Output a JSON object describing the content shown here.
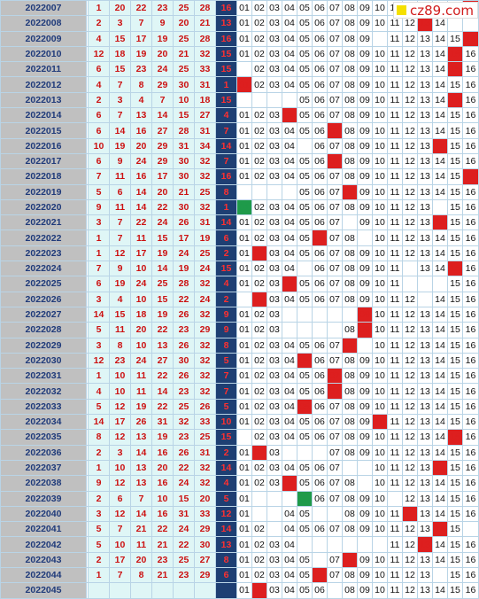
{
  "logo": {
    "text": "cz89.com"
  },
  "rows": [
    {
      "p": "2022007",
      "r": [
        1,
        20,
        22,
        23,
        25,
        28
      ],
      "b": 16,
      "hit": "16"
    },
    {
      "p": "2022008",
      "r": [
        2,
        3,
        7,
        9,
        20,
        21
      ],
      "b": 13,
      "hit": "13"
    },
    {
      "p": "2022009",
      "r": [
        4,
        15,
        17,
        19,
        25,
        28
      ],
      "b": 16,
      "hit": "16"
    },
    {
      "p": "2022010",
      "r": [
        12,
        18,
        19,
        20,
        21,
        32
      ],
      "b": 15,
      "hit": "15"
    },
    {
      "p": "2022011",
      "r": [
        6,
        15,
        23,
        24,
        25,
        33
      ],
      "b": 15,
      "hit": "15"
    },
    {
      "p": "2022012",
      "r": [
        4,
        7,
        8,
        29,
        30,
        31
      ],
      "b": 1,
      "hit": "01"
    },
    {
      "p": "2022013",
      "r": [
        2,
        3,
        4,
        7,
        10,
        18
      ],
      "b": 15,
      "hit": "15"
    },
    {
      "p": "2022014",
      "r": [
        6,
        7,
        13,
        14,
        15,
        27
      ],
      "b": 4,
      "hit": "04"
    },
    {
      "p": "2022015",
      "r": [
        6,
        14,
        16,
        27,
        28,
        31
      ],
      "b": 7,
      "hit": "07"
    },
    {
      "p": "2022016",
      "r": [
        10,
        19,
        20,
        29,
        31,
        34
      ],
      "b": 14,
      "hit": "14"
    },
    {
      "p": "2022017",
      "r": [
        6,
        9,
        24,
        29,
        30,
        32
      ],
      "b": 7,
      "hit": "07"
    },
    {
      "p": "2022018",
      "r": [
        7,
        11,
        16,
        17,
        30,
        32
      ],
      "b": 16,
      "hit": "16"
    },
    {
      "p": "2022019",
      "r": [
        5,
        6,
        14,
        20,
        21,
        25
      ],
      "b": 8,
      "hit": "08"
    },
    {
      "p": "2022020",
      "r": [
        9,
        11,
        14,
        22,
        30,
        32
      ],
      "b": 1,
      "hit": "01",
      "green": true
    },
    {
      "p": "2022021",
      "r": [
        3,
        7,
        22,
        24,
        26,
        31
      ],
      "b": 14,
      "hit": "14"
    },
    {
      "p": "2022022",
      "r": [
        1,
        7,
        11,
        15,
        17,
        19
      ],
      "b": 6,
      "hit": "06"
    },
    {
      "p": "2022023",
      "r": [
        1,
        12,
        17,
        19,
        24,
        25
      ],
      "b": 2,
      "hit": "02"
    },
    {
      "p": "2022024",
      "r": [
        7,
        9,
        10,
        14,
        19,
        24
      ],
      "b": 15,
      "hit": "15"
    },
    {
      "p": "2022025",
      "r": [
        6,
        19,
        24,
        25,
        28,
        32
      ],
      "b": 4,
      "hit": "04"
    },
    {
      "p": "2022026",
      "r": [
        3,
        4,
        10,
        15,
        22,
        24
      ],
      "b": 2,
      "hit": "02"
    },
    {
      "p": "2022027",
      "r": [
        14,
        15,
        18,
        19,
        26,
        32
      ],
      "b": 9,
      "hit": "09"
    },
    {
      "p": "2022028",
      "r": [
        5,
        11,
        20,
        22,
        23,
        29
      ],
      "b": 9,
      "hit": "09"
    },
    {
      "p": "2022029",
      "r": [
        3,
        8,
        10,
        13,
        26,
        32
      ],
      "b": 8,
      "hit": "08"
    },
    {
      "p": "2022030",
      "r": [
        12,
        23,
        24,
        27,
        30,
        32
      ],
      "b": 5,
      "hit": "05"
    },
    {
      "p": "2022031",
      "r": [
        1,
        10,
        11,
        22,
        26,
        32
      ],
      "b": 7,
      "hit": "07"
    },
    {
      "p": "2022032",
      "r": [
        4,
        10,
        11,
        14,
        23,
        32
      ],
      "b": 7,
      "hit": "07"
    },
    {
      "p": "2022033",
      "r": [
        5,
        12,
        19,
        22,
        25,
        26
      ],
      "b": 5,
      "hit": "05"
    },
    {
      "p": "2022034",
      "r": [
        14,
        17,
        26,
        31,
        32,
        33
      ],
      "b": 10,
      "hit": "10"
    },
    {
      "p": "2022035",
      "r": [
        8,
        12,
        13,
        19,
        23,
        25
      ],
      "b": 15,
      "hit": "15"
    },
    {
      "p": "2022036",
      "r": [
        2,
        3,
        14,
        16,
        26,
        31
      ],
      "b": 2,
      "hit": "02"
    },
    {
      "p": "2022037",
      "r": [
        1,
        10,
        13,
        20,
        22,
        32
      ],
      "b": 14,
      "hit": "14"
    },
    {
      "p": "2022038",
      "r": [
        9,
        12,
        13,
        16,
        24,
        32
      ],
      "b": 4,
      "hit": "04"
    },
    {
      "p": "2022039",
      "r": [
        2,
        6,
        7,
        10,
        15,
        20
      ],
      "b": 5,
      "hit": "05",
      "green": true
    },
    {
      "p": "2022040",
      "r": [
        3,
        12,
        14,
        16,
        31,
        33
      ],
      "b": 12,
      "hit": "12"
    },
    {
      "p": "2022041",
      "r": [
        5,
        7,
        21,
        22,
        24,
        29
      ],
      "b": 14,
      "hit": "14"
    },
    {
      "p": "2022042",
      "r": [
        5,
        10,
        11,
        21,
        22,
        30
      ],
      "b": 13,
      "hit": "13"
    },
    {
      "p": "2022043",
      "r": [
        2,
        17,
        20,
        23,
        25,
        27
      ],
      "b": 8,
      "hit": "08"
    },
    {
      "p": "2022044",
      "r": [
        1,
        7,
        8,
        21,
        23,
        29
      ],
      "b": 6,
      "hit": "06"
    },
    {
      "p": "2022045",
      "r": [],
      "b": null,
      "hit": "02"
    }
  ],
  "blank_cells": {
    "2022007": [
      "12",
      "13",
      "14",
      "15"
    ],
    "2022008": [
      "15",
      "16"
    ],
    "2022009": [
      "10"
    ],
    "2022011": [
      "01"
    ],
    "2022013": [
      "01",
      "02",
      "03",
      "04"
    ],
    "2022016": [
      "05"
    ],
    "2022019": [
      "01",
      "02",
      "03",
      "04"
    ],
    "2022020": [
      "14"
    ],
    "2022021": [
      "08"
    ],
    "2022022": [
      "09"
    ],
    "2022024": [
      "05",
      "12"
    ],
    "2022025": [
      "12",
      "13",
      "14"
    ],
    "2022026": [
      "01",
      "13"
    ],
    "2022027": [
      "04",
      "05",
      "06",
      "07",
      "08"
    ],
    "2022028": [
      "04",
      "05",
      "06",
      "07"
    ],
    "2022029": [
      "09"
    ],
    "2022035": [
      "01"
    ],
    "2022036": [
      "04",
      "05",
      "06"
    ],
    "2022037": [
      "08",
      "09"
    ],
    "2022038": [
      "09"
    ],
    "2022039": [
      "02",
      "03",
      "04",
      "11"
    ],
    "2022040": [
      "02",
      "03",
      "06",
      "07"
    ],
    "2022041": [
      "03",
      "16"
    ],
    "2022042": [
      "05",
      "06",
      "07",
      "08",
      "09",
      "10"
    ],
    "2022043": [
      "06"
    ],
    "2022044": [
      "14"
    ],
    "2022045": [
      "07"
    ]
  },
  "colors": {
    "period_bg": "#c0c0c0",
    "red_cell_bg": "#dff6f6",
    "blue_bg": "#1e3f73",
    "hit": "#dd1f1f",
    "hit_green": "#1f9a4a"
  }
}
